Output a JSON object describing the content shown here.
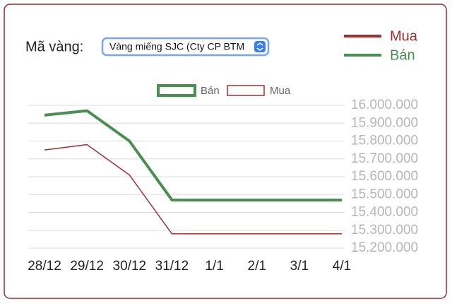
{
  "form": {
    "label": "Mã vàng:",
    "selected": "Vàng miếng SJC (Cty CP BTM"
  },
  "chart_data": {
    "type": "line",
    "categories": [
      "28/12",
      "29/12",
      "30/12",
      "31/12",
      "1/1",
      "2/1",
      "3/1",
      "4/1"
    ],
    "series": [
      {
        "name": "Bán",
        "color": "#4a8f52",
        "values": [
          15945000,
          15970000,
          15800000,
          15470000,
          15470000,
          15470000,
          15470000,
          15470000
        ]
      },
      {
        "name": "Mua",
        "color": "#a03030",
        "values": [
          15750000,
          15780000,
          15610000,
          15280000,
          15280000,
          15280000,
          15280000,
          15280000
        ]
      }
    ],
    "ylim": [
      15200000,
      16000000
    ],
    "yticks": [
      {
        "value": 15200000,
        "label": "15.200.000"
      },
      {
        "value": 15300000,
        "label": "15.300.000"
      },
      {
        "value": 15400000,
        "label": "15.400.000"
      },
      {
        "value": 15500000,
        "label": "15.500.000"
      },
      {
        "value": 15600000,
        "label": "15.600.000"
      },
      {
        "value": 15700000,
        "label": "15.700.000"
      },
      {
        "value": 15800000,
        "label": "15.800.000"
      },
      {
        "value": 15900000,
        "label": "15.900.000"
      },
      {
        "value": 16000000,
        "label": "16.000.000"
      }
    ],
    "grid": true
  }
}
